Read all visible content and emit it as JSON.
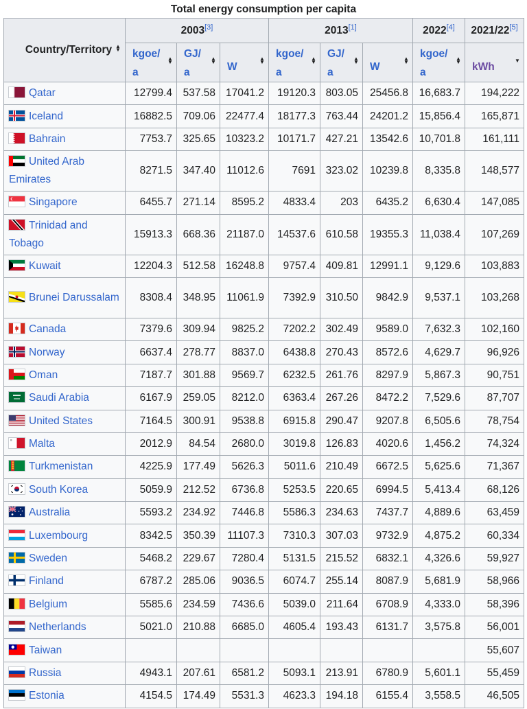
{
  "caption": "Total energy consumption per capita",
  "header": {
    "country": "Country/Territory",
    "groups": [
      {
        "year": "2003",
        "ref": "[3]"
      },
      {
        "year": "2013",
        "ref": "[1]"
      },
      {
        "year": "2022",
        "ref": "[4]"
      },
      {
        "year": "2021/22",
        "ref": "[5]"
      }
    ],
    "units": [
      {
        "line1": "kgoe/",
        "line2": "a"
      },
      {
        "line1": "GJ/",
        "line2": "a"
      },
      {
        "line1": "W",
        "line2": ""
      },
      {
        "line1": "kgoe/",
        "line2": "a"
      },
      {
        "line1": "GJ/",
        "line2": "a"
      },
      {
        "line1": "W",
        "line2": ""
      },
      {
        "line1": "kgoe/",
        "line2": "a"
      },
      {
        "line1": "kWh",
        "line2": ""
      }
    ]
  },
  "rows": [
    {
      "flag": "qatar",
      "name": "Qatar",
      "v": [
        "12799.4",
        "537.58",
        "17041.2",
        "19120.3",
        "803.05",
        "25456.8",
        "16,683.7",
        "194,222"
      ]
    },
    {
      "flag": "iceland",
      "name": "Iceland",
      "v": [
        "16882.5",
        "709.06",
        "22477.4",
        "18177.3",
        "763.44",
        "24201.2",
        "15,856.4",
        "165,871"
      ]
    },
    {
      "flag": "bahrain",
      "name": "Bahrain",
      "v": [
        "7753.7",
        "325.65",
        "10323.2",
        "10171.7",
        "427.21",
        "13542.6",
        "10,701.8",
        "161,111"
      ]
    },
    {
      "flag": "uae",
      "name": "United Arab Emirates",
      "v": [
        "8271.5",
        "347.40",
        "11012.6",
        "7691",
        "323.02",
        "10239.8",
        "8,335.8",
        "148,577"
      ]
    },
    {
      "flag": "singapore",
      "name": "Singapore",
      "v": [
        "6455.7",
        "271.14",
        "8595.2",
        "4833.4",
        "203",
        "6435.2",
        "6,630.4",
        "147,085"
      ]
    },
    {
      "flag": "trinidad",
      "name": "Trinidad and Tobago",
      "v": [
        "15913.3",
        "668.36",
        "21187.0",
        "14537.6",
        "610.58",
        "19355.3",
        "11,038.4",
        "107,269"
      ]
    },
    {
      "flag": "kuwait",
      "name": "Kuwait",
      "v": [
        "12204.3",
        "512.58",
        "16248.8",
        "9757.4",
        "409.81",
        "12991.1",
        "9,129.6",
        "103,883"
      ]
    },
    {
      "flag": "brunei",
      "name": "Brunei Darussalam",
      "v": [
        "8308.4",
        "348.95",
        "11061.9",
        "7392.9",
        "310.50",
        "9842.9",
        "9,537.1",
        "103,268"
      ]
    },
    {
      "flag": "canada",
      "name": "Canada",
      "v": [
        "7379.6",
        "309.94",
        "9825.2",
        "7202.2",
        "302.49",
        "9589.0",
        "7,632.3",
        "102,160"
      ]
    },
    {
      "flag": "norway",
      "name": "Norway",
      "v": [
        "6637.4",
        "278.77",
        "8837.0",
        "6438.8",
        "270.43",
        "8572.6",
        "4,629.7",
        "96,926"
      ]
    },
    {
      "flag": "oman",
      "name": "Oman",
      "v": [
        "7187.7",
        "301.88",
        "9569.7",
        "6232.5",
        "261.76",
        "8297.9",
        "5,867.3",
        "90,751"
      ]
    },
    {
      "flag": "saudi",
      "name": "Saudi Arabia",
      "v": [
        "6167.9",
        "259.05",
        "8212.0",
        "6363.4",
        "267.26",
        "8472.2",
        "7,529.6",
        "87,707"
      ]
    },
    {
      "flag": "usa",
      "name": "United States",
      "v": [
        "7164.5",
        "300.91",
        "9538.8",
        "6915.8",
        "290.47",
        "9207.8",
        "6,505.6",
        "78,754"
      ]
    },
    {
      "flag": "malta",
      "name": "Malta",
      "v": [
        "2012.9",
        "84.54",
        "2680.0",
        "3019.8",
        "126.83",
        "4020.6",
        "1,456.2",
        "74,324"
      ]
    },
    {
      "flag": "turkmenistan",
      "name": "Turkmenistan",
      "v": [
        "4225.9",
        "177.49",
        "5626.3",
        "5011.6",
        "210.49",
        "6672.5",
        "5,625.6",
        "71,367"
      ]
    },
    {
      "flag": "korea",
      "name": "South Korea",
      "v": [
        "5059.9",
        "212.52",
        "6736.8",
        "5253.5",
        "220.65",
        "6994.5",
        "5,413.4",
        "68,126"
      ]
    },
    {
      "flag": "australia",
      "name": "Australia",
      "v": [
        "5593.2",
        "234.92",
        "7446.8",
        "5586.3",
        "234.63",
        "7437.7",
        "4,889.6",
        "63,459"
      ]
    },
    {
      "flag": "luxembourg",
      "name": "Luxembourg",
      "v": [
        "8342.5",
        "350.39",
        "11107.3",
        "7310.3",
        "307.03",
        "9732.9",
        "4,875.2",
        "60,334"
      ]
    },
    {
      "flag": "sweden",
      "name": "Sweden",
      "v": [
        "5468.2",
        "229.67",
        "7280.4",
        "5131.5",
        "215.52",
        "6832.1",
        "4,326.6",
        "59,927"
      ]
    },
    {
      "flag": "finland",
      "name": "Finland",
      "v": [
        "6787.2",
        "285.06",
        "9036.5",
        "6074.7",
        "255.14",
        "8087.9",
        "5,681.9",
        "58,966"
      ]
    },
    {
      "flag": "belgium",
      "name": "Belgium",
      "v": [
        "5585.6",
        "234.59",
        "7436.6",
        "5039.0",
        "211.64",
        "6708.9",
        "4,333.0",
        "58,396"
      ]
    },
    {
      "flag": "netherlands",
      "name": "Netherlands",
      "v": [
        "5021.0",
        "210.88",
        "6685.0",
        "4605.4",
        "193.43",
        "6131.7",
        "3,575.8",
        "56,001"
      ]
    },
    {
      "flag": "taiwan",
      "name": "Taiwan",
      "v": [
        "",
        "",
        "",
        "",
        "",
        "",
        "",
        "55,607"
      ]
    },
    {
      "flag": "russia",
      "name": "Russia",
      "v": [
        "4943.1",
        "207.61",
        "6581.2",
        "5093.1",
        "213.91",
        "6780.9",
        "5,601.1",
        "55,459"
      ]
    },
    {
      "flag": "estonia",
      "name": "Estonia",
      "v": [
        "4154.5",
        "174.49",
        "5531.3",
        "4623.3",
        "194.18",
        "6155.4",
        "3,558.5",
        "46,505"
      ]
    }
  ]
}
